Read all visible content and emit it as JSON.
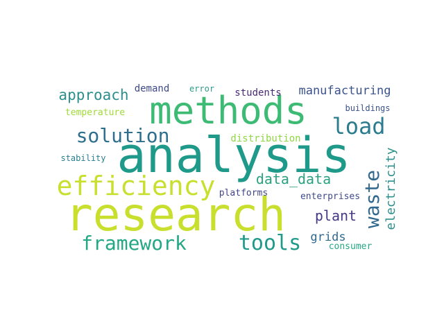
{
  "words": [
    {
      "text": "analysis",
      "color": "#1f9a8a"
    },
    {
      "text": "research",
      "color": "#c8df2e"
    },
    {
      "text": "methods",
      "color": "#3dbb74"
    },
    {
      "text": "efficiency",
      "color": "#c8df2e"
    },
    {
      "text": "load",
      "color": "#2b7c8e"
    },
    {
      "text": "solution",
      "color": "#2f6f8e"
    },
    {
      "text": "framework",
      "color": "#22a884"
    },
    {
      "text": "tools",
      "color": "#1f9a8a"
    },
    {
      "text": "waste",
      "color": "#31688e"
    },
    {
      "text": "approach",
      "color": "#2c8f8c"
    },
    {
      "text": "data_data",
      "color": "#2aa180"
    },
    {
      "text": "plant",
      "color": "#443983"
    },
    {
      "text": "electricity",
      "color": "#2c8f8c"
    },
    {
      "text": "manufacturing",
      "color": "#3b528b"
    },
    {
      "text": "distribution",
      "color": "#8fd744"
    },
    {
      "text": "temperature",
      "color": "#a0da39"
    },
    {
      "text": "demand",
      "color": "#3e4a89"
    },
    {
      "text": "error",
      "color": "#2a9b8a"
    },
    {
      "text": "students",
      "color": "#482878"
    },
    {
      "text": "buildings",
      "color": "#3b528b"
    },
    {
      "text": "stability",
      "color": "#277f8e"
    },
    {
      "text": "platforms",
      "color": "#414487"
    },
    {
      "text": "enterprises",
      "color": "#3e4a89"
    },
    {
      "text": "grids",
      "color": "#31688e"
    },
    {
      "text": "consumer",
      "color": "#26a784"
    }
  ]
}
